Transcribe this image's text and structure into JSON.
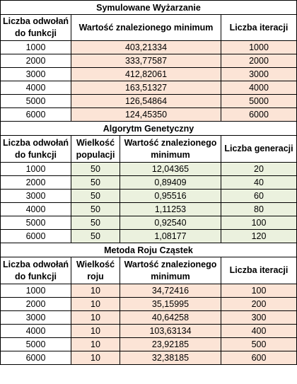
{
  "sa": {
    "title": "Symulowane Wyżarzanie",
    "headers": [
      "Liczba odwołań do funkcji",
      "Wartość znalezionego minimum",
      "Liczba iteracji"
    ],
    "rows": [
      [
        "1000",
        "403,21334",
        "1000"
      ],
      [
        "2000",
        "333,77587",
        "2000"
      ],
      [
        "3000",
        "412,82061",
        "3000"
      ],
      [
        "4000",
        "163,51327",
        "4000"
      ],
      [
        "5000",
        "126,54864",
        "5000"
      ],
      [
        "6000",
        "124,45350",
        "6000"
      ]
    ]
  },
  "ga": {
    "title": "Algorytm Genetyczny",
    "headers": [
      "Liczba odwołań do funkcji",
      "Wielkość populacji",
      "Wartość znalezionego minimum",
      "Liczba generacji"
    ],
    "rows": [
      [
        "1000",
        "50",
        "12,04365",
        "20"
      ],
      [
        "2000",
        "50",
        "0,89409",
        "40"
      ],
      [
        "3000",
        "50",
        "0,95516",
        "60"
      ],
      [
        "4000",
        "50",
        "1,11253",
        "80"
      ],
      [
        "5000",
        "50",
        "0,92540",
        "100"
      ],
      [
        "6000",
        "50",
        "1,08177",
        "120"
      ]
    ]
  },
  "pso": {
    "title": "Metoda Roju Cząstek",
    "headers": [
      "Liczba odwołań do funkcji",
      "Wielkość roju",
      "Wartość znalezionego minimum",
      "Liczba iteracji"
    ],
    "rows": [
      [
        "1000",
        "10",
        "34,72416",
        "100"
      ],
      [
        "2000",
        "10",
        "35,15995",
        "200"
      ],
      [
        "3000",
        "10",
        "40,64258",
        "300"
      ],
      [
        "4000",
        "10",
        "103,63134",
        "400"
      ],
      [
        "5000",
        "10",
        "23,92185",
        "500"
      ],
      [
        "6000",
        "10",
        "32,38185",
        "600"
      ]
    ]
  },
  "colors": {
    "peach": "#fce4d6",
    "green": "#ebf1de",
    "border": "#000000"
  }
}
